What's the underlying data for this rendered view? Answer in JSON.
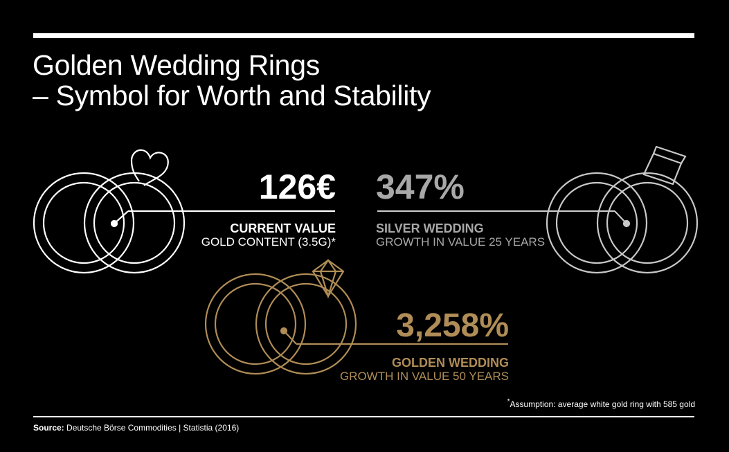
{
  "title": {
    "line1": "Golden Wedding Rings",
    "line2": "– Symbol for Worth and Stability"
  },
  "colors": {
    "background": "#000000",
    "white": "#ffffff",
    "silver": "#a8a8a8",
    "gold": "#b08d57"
  },
  "current": {
    "value": "126€",
    "label": "CURRENT VALUE",
    "sublabel": "GOLD CONTENT (3.5G)*",
    "icon": "rings-heart-icon"
  },
  "silver": {
    "value": "347%",
    "label": "SILVER WEDDING",
    "sublabel": "GROWTH IN VALUE 25 YEARS",
    "icon": "rings-jewel-icon"
  },
  "golden": {
    "value": "3,258%",
    "label": "GOLDEN WEDDING",
    "sublabel": "GROWTH IN VALUE 50 YEARS",
    "icon": "rings-diamond-icon"
  },
  "footnote": {
    "mark": "*",
    "text": "Assumption: average white gold ring with 585 gold"
  },
  "source": {
    "label": "Source:",
    "text": " Deutsche Börse Commodities | Statistia (2016)"
  }
}
